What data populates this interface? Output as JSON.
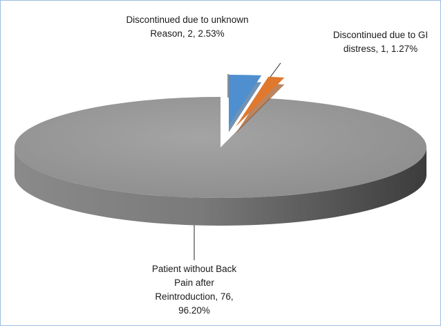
{
  "chart_data": {
    "type": "pie3d",
    "categories": [
      "Discontinued due to unknown Reason",
      "Discontinued due to GI distress",
      "Patient without Back Pain after Reintroduction"
    ],
    "values": [
      2,
      1,
      76
    ],
    "percents": [
      2.53,
      1.27,
      96.2
    ],
    "percent_labels": [
      "2.53%",
      "1.27%",
      "96.20%"
    ],
    "colors": [
      "#4f8fd0",
      "#e0782d",
      "#9a9a9a"
    ]
  }
}
